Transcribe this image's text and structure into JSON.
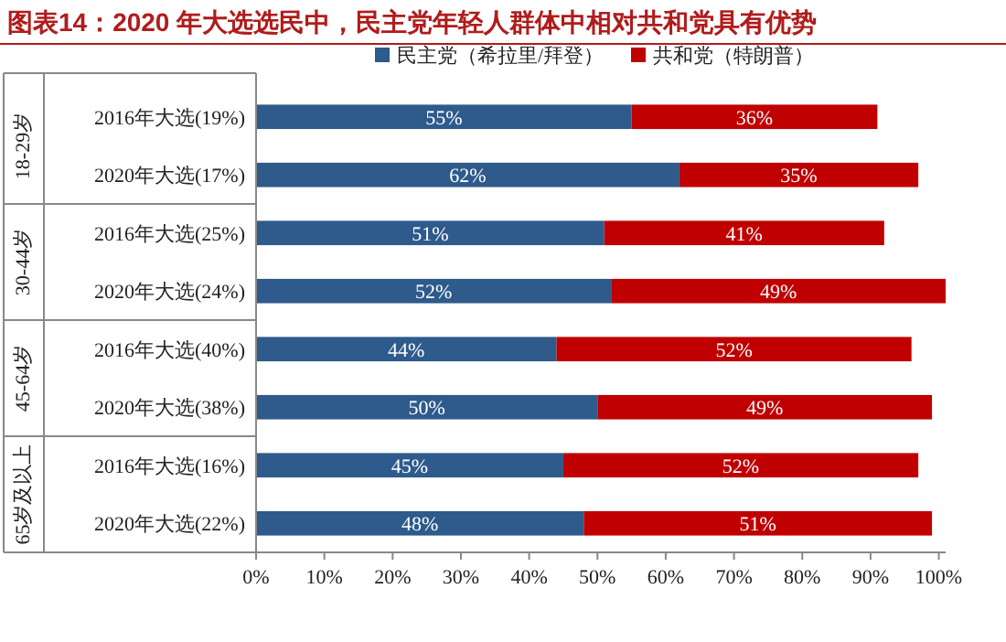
{
  "chart_data": {
    "type": "bar",
    "orientation": "horizontal",
    "stacked": true,
    "title": "图表14：2020 年大选选民中，民主党年轻人群体中相对共和党具有优势",
    "categories": [
      "2016年大选(19%)",
      "2020年大选(17%)",
      "2016年大选(25%)",
      "2020年大选(24%)",
      "2016年大选(40%)",
      "2020年大选(38%)",
      "2016年大选(16%)",
      "2020年大选(22%)"
    ],
    "annotations": [
      "18-29岁",
      "30-44岁",
      "45-64岁",
      "65岁及以上"
    ],
    "series": [
      {
        "name": "民主党（希拉里/拜登）",
        "color": "#2e5a8c",
        "values": [
          55,
          62,
          51,
          52,
          44,
          50,
          45,
          48
        ],
        "value_labels": [
          "55%",
          "62%",
          "51%",
          "52%",
          "44%",
          "50%",
          "45%",
          "48%"
        ]
      },
      {
        "name": "共和党（特朗普）",
        "color": "#c00000",
        "values": [
          36,
          35,
          41,
          49,
          52,
          49,
          52,
          51
        ],
        "value_labels": [
          "36%",
          "35%",
          "41%",
          "49%",
          "52%",
          "49%",
          "52%",
          "51%"
        ]
      }
    ],
    "xlim": [
      0,
      101
    ],
    "xticks": [
      {
        "value": 0,
        "label": "0%"
      },
      {
        "value": 10,
        "label": "10%"
      },
      {
        "value": 20,
        "label": "20%"
      },
      {
        "value": 30,
        "label": "30%"
      },
      {
        "value": 40,
        "label": "40%"
      },
      {
        "value": 50,
        "label": "50%"
      },
      {
        "value": 60,
        "label": "60%"
      },
      {
        "value": 70,
        "label": "70%"
      },
      {
        "value": 80,
        "label": "80%"
      },
      {
        "value": 90,
        "label": "90%"
      },
      {
        "value": 100,
        "label": "100%"
      }
    ],
    "legend": "top"
  }
}
